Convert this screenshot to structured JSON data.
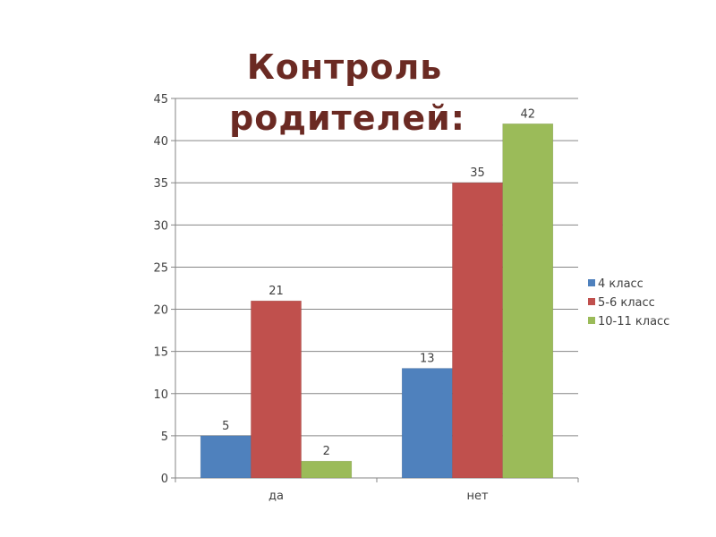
{
  "chart_data": {
    "type": "bar",
    "title": [
      "Контроль",
      "родителей:"
    ],
    "categories": [
      "да",
      "нет"
    ],
    "series": [
      {
        "name": "4 класс",
        "values": [
          5,
          13
        ],
        "color": "#4f81bd"
      },
      {
        "name": "5-6 класс",
        "values": [
          21,
          35
        ],
        "color": "#c0504d"
      },
      {
        "name": "10-11 класс",
        "values": [
          2,
          42
        ],
        "color": "#9bbb59"
      }
    ],
    "ylim": [
      0,
      45
    ],
    "yticks": [
      0,
      5,
      10,
      15,
      20,
      25,
      30,
      35,
      40,
      45
    ],
    "grid": true,
    "legend": "right",
    "data_labels": true
  }
}
